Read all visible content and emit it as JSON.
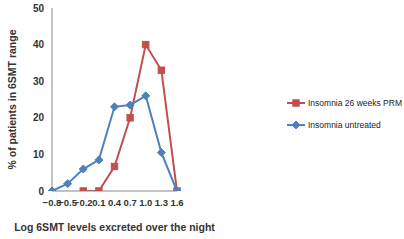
{
  "chart_data": {
    "type": "line",
    "x_label": "Log 6SMT levels excreted over the night",
    "y_label": "% of patients in 6SMT range",
    "categories": [
      "−0.8",
      "−0.5",
      "−0.2",
      "0.1",
      "0.4",
      "0.7",
      "1.0",
      "1.3",
      "1.6"
    ],
    "series": [
      {
        "name": "Insomnia 26 weeks PRM",
        "color": "#c0504d",
        "marker": "square",
        "values": [
          null,
          null,
          0,
          0,
          6.7,
          20,
          40,
          33,
          0
        ]
      },
      {
        "name": "Insomnia untreated",
        "color": "#4f81bd",
        "marker": "diamond",
        "values": [
          0,
          2,
          6,
          8.5,
          23,
          23.5,
          26,
          10.5,
          0
        ]
      }
    ],
    "ylim": [
      0,
      50
    ],
    "yticks": [
      0,
      10,
      20,
      30,
      40,
      50
    ],
    "legend": "right",
    "grid": false
  }
}
